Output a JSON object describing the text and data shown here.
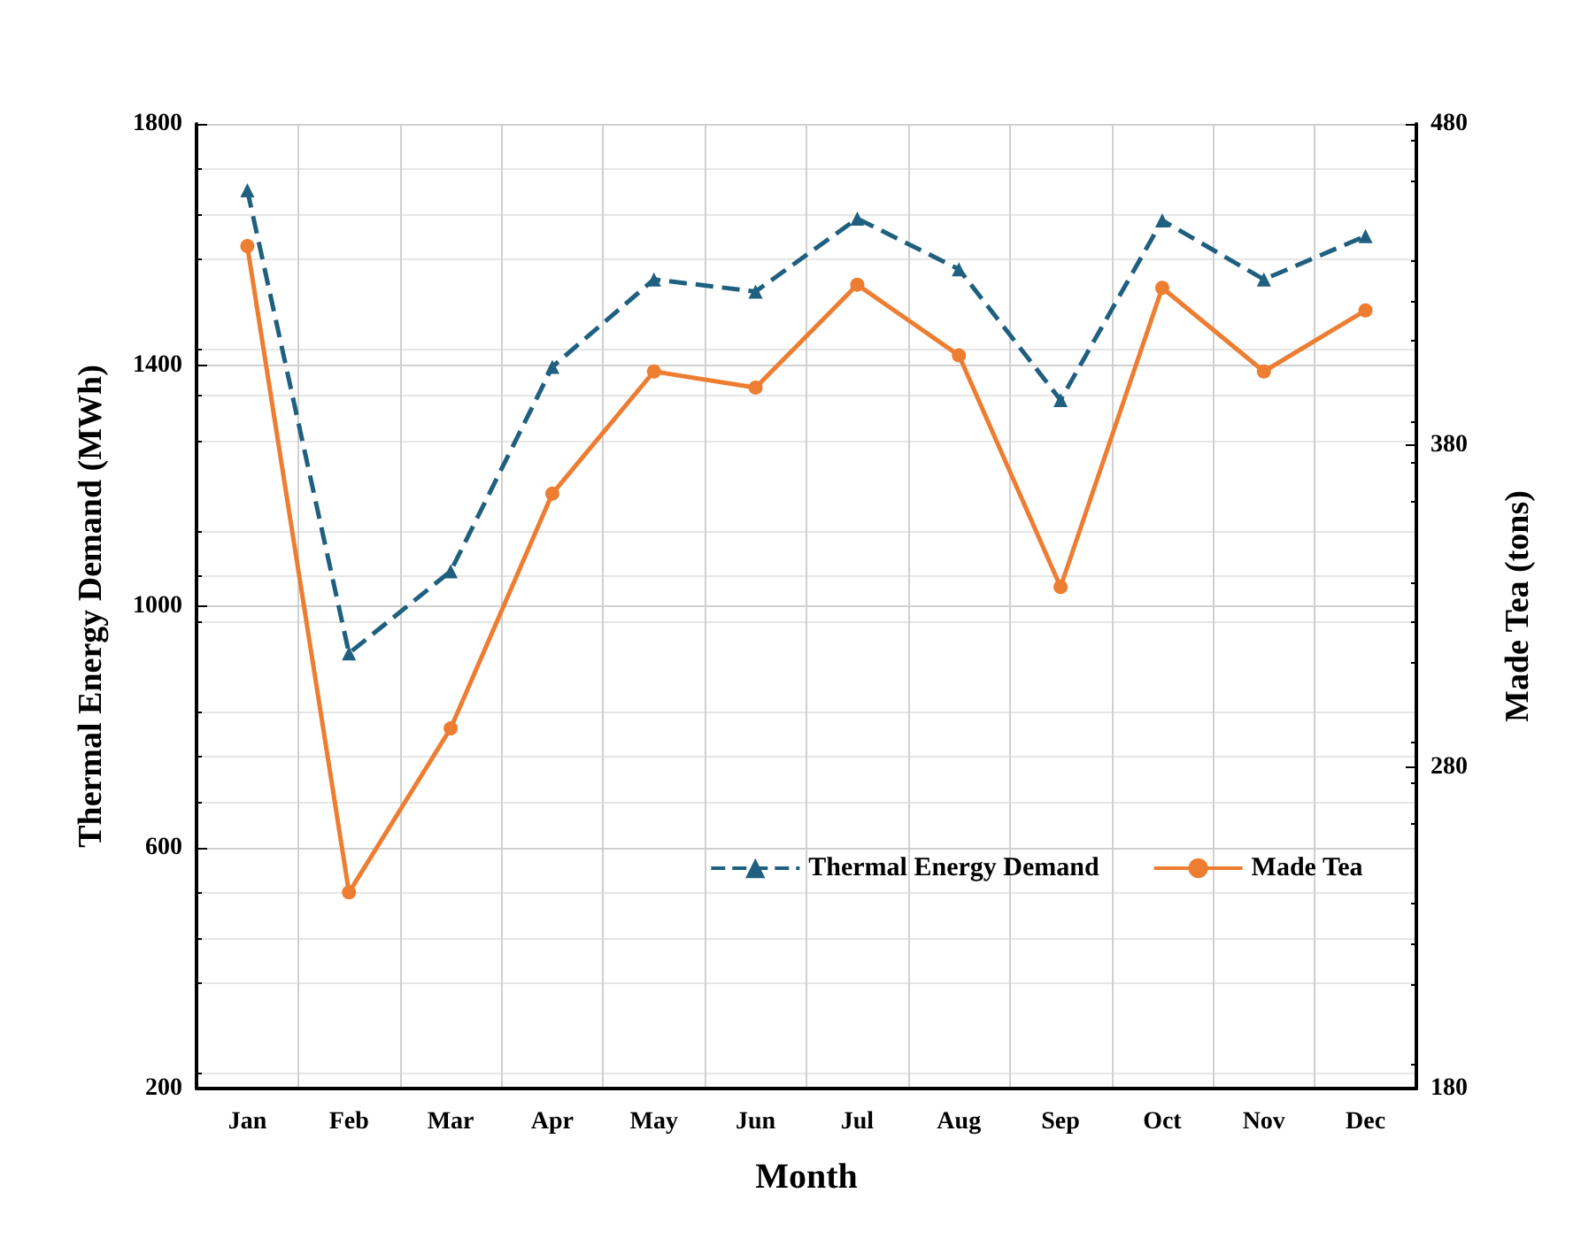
{
  "chart_data": {
    "type": "line",
    "xlabel": "Month",
    "ylabel": "Thermal Energy Demand (MWh)",
    "y2label": "Made Tea (tons)",
    "categories": [
      "Jan",
      "Feb",
      "Mar",
      "Apr",
      "May",
      "Jun",
      "Jul",
      "Aug",
      "Sep",
      "Oct",
      "Nov",
      "Dec"
    ],
    "series": [
      {
        "name": "Thermal Energy Demand",
        "color": "#1f5f7f",
        "values": [
          1690,
          922,
          1058,
          1397,
          1542,
          1522,
          1643,
          1559,
          1342,
          1640,
          1542,
          1614
        ],
        "marker": "triangle",
        "line_style": "dashed"
      },
      {
        "name": "Made Tea",
        "color": "#ed7d31",
        "values": [
          442,
          241,
          292,
          365,
          403,
          398,
          430,
          408,
          336,
          429,
          403,
          422
        ],
        "marker": "circle",
        "line_style": "solid",
        "axis": "y2"
      }
    ],
    "ylim": [
      200,
      1800
    ],
    "yticks": [
      200,
      600,
      1000,
      1400,
      1800
    ],
    "y2lim": [
      180,
      480
    ],
    "y2ticks": [
      180,
      280,
      380,
      480
    ],
    "grid": true,
    "legend": "right"
  }
}
